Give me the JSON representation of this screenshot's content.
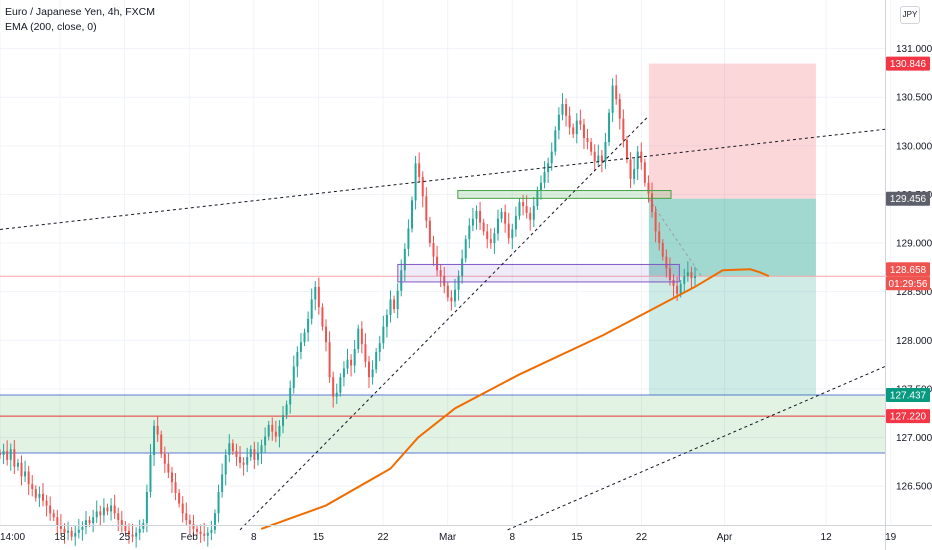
{
  "legend": {
    "title": "Euro / Japanese Yen, 4h, FXCM",
    "indicator": "EMA (200, close, 0)"
  },
  "currency_button": "JPY",
  "colors": {
    "up": "#26a69a",
    "down": "#ef5350",
    "ema": "#ef6c00",
    "grid": "#f0f3fa",
    "axis_text": "#131722"
  },
  "chart_data": {
    "type": "candlestick",
    "title": "Euro / Japanese Yen, 4h, FXCM",
    "symbol": "EURJPY",
    "timeframe": "4h",
    "indicator": "EMA (200, close, 0)",
    "ylim": [
      126.1,
      131.5
    ],
    "y_ticks": [
      "131.000",
      "130.500",
      "130.000",
      "129.500",
      "129.000",
      "128.500",
      "128.000",
      "127.500",
      "127.000",
      "126.500"
    ],
    "x_ticks": [
      "14:00",
      "18",
      "25",
      "Feb",
      "8",
      "15",
      "22",
      "Mar",
      "8",
      "15",
      "22",
      "Apr",
      "12",
      "19"
    ],
    "price_labels": [
      {
        "value": "130.846",
        "kind": "stop"
      },
      {
        "value": "129.456",
        "kind": "entry"
      },
      {
        "value": "128.658",
        "kind": "last"
      },
      {
        "value": "01:29:56",
        "kind": "countdown"
      },
      {
        "value": "127.437",
        "kind": "target"
      },
      {
        "value": "127.220",
        "kind": "level"
      }
    ],
    "position": {
      "stop": 130.846,
      "entry": 129.456,
      "target": 127.437,
      "direction": "short"
    },
    "horizontal_levels": [
      127.437,
      127.22,
      126.84
    ],
    "support_zone": [
      126.84,
      127.437
    ],
    "small_boxes": [
      {
        "top": 129.54,
        "bottom": 129.46,
        "color": "#43a047"
      },
      {
        "top": 128.78,
        "bottom": 128.6,
        "color": "#7e57c2"
      }
    ],
    "trendlines": [
      {
        "from": [
          "start",
          129.14
        ],
        "to": [
          "end",
          130.17
        ]
      },
      {
        "from": [
          "Feb 5",
          126.05
        ],
        "to": [
          "Mar 20",
          130.3
        ]
      },
      {
        "from": [
          "Mar 9",
          126.05
        ],
        "to": [
          "Apr 19",
          127.73
        ]
      }
    ],
    "candles": [
      126.82,
      126.86,
      126.77,
      126.88,
      126.7,
      126.74,
      126.6,
      126.65,
      126.52,
      126.47,
      126.38,
      126.42,
      126.35,
      126.3,
      126.22,
      126.18,
      126.1,
      126.06,
      126.02,
      126.04,
      125.98,
      126.02,
      126.05,
      126.08,
      126.15,
      126.12,
      126.18,
      126.24,
      126.2,
      126.28,
      126.24,
      126.3,
      126.22,
      126.15,
      126.1,
      126.04,
      126.0,
      125.98,
      126.02,
      126.06,
      126.12,
      126.44,
      126.82,
      127.12,
      127.03,
      126.83,
      126.73,
      126.64,
      126.54,
      126.43,
      126.32,
      126.22,
      126.15,
      126.11,
      126.06,
      126.03,
      126.01,
      125.99,
      126.02,
      126.05,
      126.22,
      126.44,
      126.62,
      126.82,
      126.94,
      126.86,
      126.8,
      126.74,
      126.72,
      126.8,
      126.88,
      126.77,
      126.84,
      126.92,
      127.01,
      127.13,
      127.06,
      127.01,
      127.12,
      127.23,
      127.34,
      127.51,
      127.73,
      127.88,
      127.98,
      128.08,
      128.22,
      128.42,
      128.55,
      128.34,
      128.14,
      127.98,
      127.62,
      127.42,
      127.46,
      127.62,
      127.71,
      127.8,
      127.74,
      127.91,
      128.12,
      127.96,
      127.78,
      127.62,
      127.7,
      127.88,
      127.97,
      128.14,
      128.26,
      128.42,
      128.32,
      128.51,
      128.72,
      128.94,
      129.15,
      129.44,
      129.82,
      129.68,
      129.48,
      129.23,
      129.0,
      128.86,
      128.72,
      128.66,
      128.56,
      128.44,
      128.4,
      128.52,
      128.66,
      128.84,
      129.04,
      129.18,
      129.25,
      129.33,
      129.21,
      129.12,
      129.04,
      129.0,
      129.1,
      129.25,
      129.32,
      129.2,
      129.05,
      129.14,
      129.28,
      129.42,
      129.38,
      129.31,
      129.24,
      129.38,
      129.54,
      129.62,
      129.73,
      129.82,
      129.94,
      130.16,
      130.32,
      130.43,
      130.31,
      130.19,
      130.12,
      130.26,
      130.22,
      130.08,
      130.04,
      129.94,
      129.84,
      129.9,
      129.84,
      130.04,
      130.34,
      130.62,
      130.48,
      130.28,
      130.06,
      129.86,
      129.66,
      129.76,
      129.94,
      129.83,
      129.62,
      129.51,
      129.32,
      129.12,
      129.0,
      128.86,
      128.74,
      128.62,
      128.56,
      128.48,
      128.58,
      128.66,
      128.7,
      128.64,
      128.66
    ],
    "ema": [
      [
        8,
        126.06
      ],
      [
        15,
        126.3
      ],
      [
        22,
        126.68
      ],
      [
        25,
        127.0
      ],
      [
        29,
        127.3
      ],
      [
        36,
        127.65
      ],
      [
        45,
        128.05
      ],
      [
        50,
        128.3
      ],
      [
        55,
        128.55
      ],
      [
        58,
        128.72
      ],
      [
        61,
        128.73
      ],
      [
        62,
        128.7
      ],
      [
        63,
        128.66
      ]
    ]
  }
}
